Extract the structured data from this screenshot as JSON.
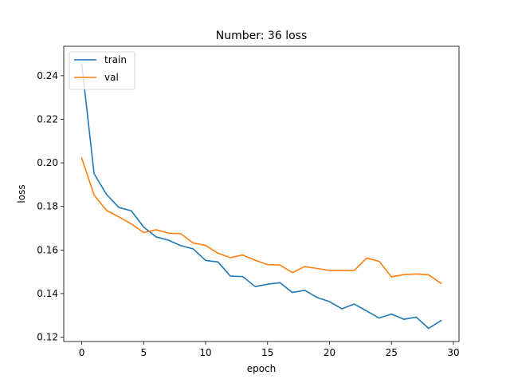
{
  "chart_data": {
    "type": "line",
    "title": "Number: 36 loss",
    "xlabel": "epoch",
    "ylabel": "loss",
    "xlim": [
      -1.45,
      30.45
    ],
    "ylim": [
      0.118,
      0.2535
    ],
    "xticks": [
      0,
      5,
      10,
      15,
      20,
      25,
      30
    ],
    "yticks": [
      0.12,
      0.14,
      0.16,
      0.18,
      0.2,
      0.22,
      0.24
    ],
    "ytick_labels": [
      "0.12",
      "0.14",
      "0.16",
      "0.18",
      "0.20",
      "0.22",
      "0.24"
    ],
    "legend_position": "upper left",
    "grid": false,
    "x": [
      0,
      1,
      2,
      3,
      4,
      5,
      6,
      7,
      8,
      9,
      10,
      11,
      12,
      13,
      14,
      15,
      16,
      17,
      18,
      19,
      20,
      21,
      22,
      23,
      24,
      25,
      26,
      27,
      28,
      29
    ],
    "series": [
      {
        "name": "train",
        "color": "#1f77b4",
        "values": [
          0.2455,
          0.195,
          0.1855,
          0.1795,
          0.178,
          0.1705,
          0.166,
          0.1645,
          0.162,
          0.1605,
          0.1552,
          0.1545,
          0.148,
          0.1478,
          0.1432,
          0.1443,
          0.145,
          0.1405,
          0.1415,
          0.1382,
          0.1363,
          0.133,
          0.1352,
          0.132,
          0.1288,
          0.1306,
          0.1282,
          0.1292,
          0.124,
          0.1276
        ]
      },
      {
        "name": "val",
        "color": "#ff7f0e",
        "values": [
          0.2022,
          0.1852,
          0.1782,
          0.1752,
          0.172,
          0.168,
          0.1693,
          0.1677,
          0.1675,
          0.1632,
          0.1621,
          0.1585,
          0.1565,
          0.1577,
          0.1553,
          0.1533,
          0.1531,
          0.1496,
          0.1524,
          0.1515,
          0.1506,
          0.1506,
          0.1506,
          0.1563,
          0.1548,
          0.1477,
          0.1487,
          0.149,
          0.1486,
          0.1447
        ]
      }
    ]
  }
}
